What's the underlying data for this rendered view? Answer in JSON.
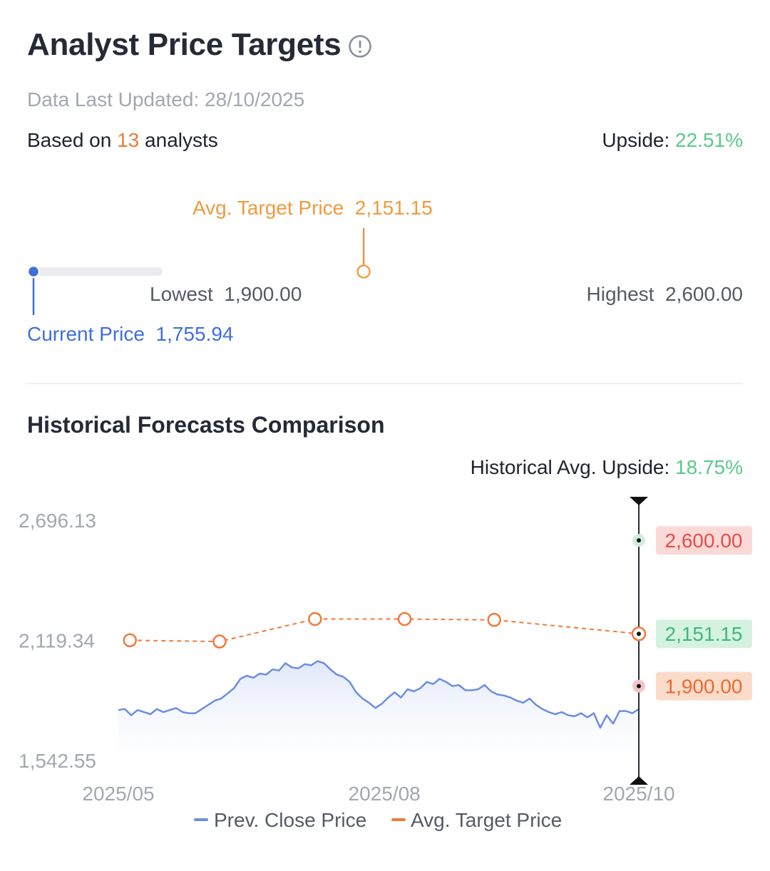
{
  "header": {
    "title": "Analyst Price Targets",
    "info_icon": "info-circle-icon",
    "data_updated": "Data Last Updated: 28/10/2025",
    "based_prefix": "Based on ",
    "analyst_count": "13",
    "based_suffix": " analysts",
    "upside_label": "Upside: ",
    "upside_value": "22.51%"
  },
  "range_bar": {
    "avg_label": "Avg. Target Price",
    "avg_value": "2,151.15",
    "lowest_label": "Lowest",
    "lowest_value": "1,900.00",
    "highest_label": "Highest",
    "highest_value": "2,600.00",
    "current_label": "Current Price",
    "current_value": "1,755.94",
    "current_price": 1755.94,
    "lowest_price": 1900.0,
    "avg_price": 2151.15,
    "highest_price": 2600.0,
    "colors": {
      "low": "#e8605a",
      "mid": "#f0914a",
      "high": "#5cc98a",
      "current": "#3f6fd8",
      "track": "#e9ebef"
    }
  },
  "historical": {
    "title": "Historical Forecasts Comparison",
    "avg_upside_label": "Historical Avg. Upside: ",
    "avg_upside_value": "18.75%"
  },
  "chart_data": {
    "type": "line",
    "y_ticks": [
      "2,696.13",
      "2,119.34",
      "1,542.55"
    ],
    "ylim": [
      1542.55,
      2696.13
    ],
    "x_ticks": [
      "2025/05",
      "2025/08",
      "2025/10"
    ],
    "x_range": [
      "2025-05-01",
      "2025-10-28"
    ],
    "series": [
      {
        "name": "Prev. Close Price",
        "color": "#6b8fe0",
        "type": "area-line",
        "values": [
          1785,
          1790,
          1760,
          1785,
          1775,
          1765,
          1790,
          1775,
          1785,
          1795,
          1775,
          1770,
          1770,
          1790,
          1810,
          1830,
          1840,
          1865,
          1890,
          1935,
          1950,
          1940,
          1960,
          1955,
          1980,
          1975,
          2010,
          1990,
          1985,
          2005,
          2000,
          2020,
          2010,
          1980,
          1955,
          1945,
          1920,
          1870,
          1840,
          1820,
          1795,
          1815,
          1845,
          1870,
          1845,
          1885,
          1875,
          1890,
          1920,
          1910,
          1935,
          1920,
          1900,
          1905,
          1880,
          1880,
          1885,
          1905,
          1875,
          1860,
          1855,
          1845,
          1830,
          1820,
          1840,
          1810,
          1790,
          1775,
          1765,
          1775,
          1760,
          1755,
          1770,
          1750,
          1770,
          1700,
          1760,
          1720,
          1780,
          1780,
          1770,
          1790
        ]
      },
      {
        "name": "Avg. Target Price",
        "color": "#ef7a3b",
        "type": "dashed-markers",
        "points": [
          {
            "x": "2025-05-05",
            "y": 2120
          },
          {
            "x": "2025-06-05",
            "y": 2114
          },
          {
            "x": "2025-07-08",
            "y": 2222
          },
          {
            "x": "2025-08-08",
            "y": 2222
          },
          {
            "x": "2025-09-08",
            "y": 2218
          },
          {
            "x": "2025-10-28",
            "y": 2151.15
          }
        ]
      }
    ],
    "markers": [
      {
        "label": "2,600.00",
        "value": 2600.0,
        "text_color": "#e0504a",
        "bg": "#fbd9d6",
        "dot": "#cfeedd"
      },
      {
        "label": "2,151.15",
        "value": 2151.15,
        "text_color": "#3fb776",
        "bg": "#d5f2e1",
        "dot": "#ef7a3b"
      },
      {
        "label": "1,900.00",
        "value": 1900.0,
        "text_color": "#e86b2e",
        "bg": "#fbdccb",
        "dot": "#f3c6c6"
      }
    ],
    "legend": [
      "Prev. Close Price",
      "Avg. Target Price"
    ],
    "legend_placement": "bottom-center"
  }
}
